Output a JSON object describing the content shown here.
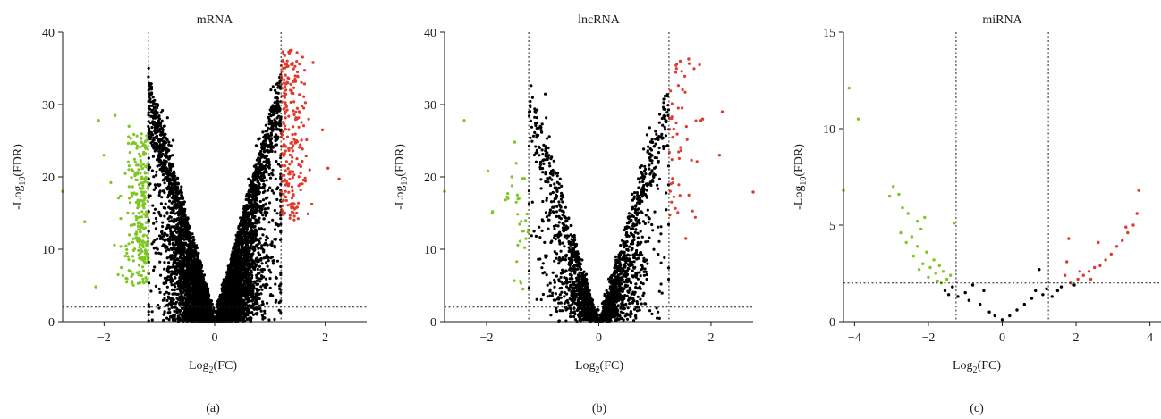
{
  "chart_data": [
    {
      "type": "scatter",
      "panel": "(a)",
      "title": "mRNA",
      "xlabel": "Log2(FC)",
      "ylabel": "-Log10(FDR)",
      "xlim": [
        -2.75,
        2.75
      ],
      "ylim": [
        0,
        40
      ],
      "xticks": [
        -2,
        0,
        2
      ],
      "yticks": [
        0,
        10,
        20,
        30,
        40
      ],
      "fc_threshold": 1.2,
      "fdr_threshold": 2,
      "grid": false,
      "legend": "none",
      "colors": {
        "down": "#7ec622",
        "up": "#e03a2c",
        "ns": "#000000"
      },
      "volcano": {
        "n_ns": 6500,
        "n_down": 260,
        "n_up": 230,
        "slope": 28,
        "max_y": 37.5,
        "min_base": 0.3,
        "spread": 0.9
      },
      "series": [
        {
          "values": [
            {
              "x": -2.75,
              "y": 18
            },
            {
              "x": -2.1,
              "y": 27.8
            },
            {
              "x": -2.35,
              "y": 13.8
            },
            {
              "x": -1.8,
              "y": 28.5
            },
            {
              "x": -1.55,
              "y": 27.0
            },
            {
              "x": -2.15,
              "y": 4.8
            },
            {
              "x": -1.6,
              "y": 6.0
            },
            {
              "x": -1.4,
              "y": 24.3
            },
            {
              "x": 1.35,
              "y": 37.0
            },
            {
              "x": 1.78,
              "y": 35.8
            },
            {
              "x": 1.95,
              "y": 26.5
            },
            {
              "x": 2.25,
              "y": 19.7
            },
            {
              "x": 2.05,
              "y": 21.2
            },
            {
              "x": 1.32,
              "y": 33.0
            }
          ]
        }
      ]
    },
    {
      "type": "scatter",
      "panel": "(b)",
      "title": "lncRNA",
      "xlabel": "Log2(FC)",
      "ylabel": "-Log10(FDR)",
      "xlim": [
        -2.75,
        2.75
      ],
      "ylim": [
        0,
        40
      ],
      "xticks": [
        -2,
        0,
        2
      ],
      "yticks": [
        0,
        10,
        20,
        30,
        40
      ],
      "fc_threshold": 1.25,
      "fdr_threshold": 2,
      "grid": false,
      "legend": "none",
      "colors": {
        "down": "#7ec622",
        "up": "#e03a2c",
        "ns": "#000000"
      },
      "volcano": {
        "n_ns": 2000,
        "n_down": 30,
        "n_up": 50,
        "slope": 26,
        "max_y": 38,
        "min_base": 0.5,
        "spread": 0.8
      },
      "series": [
        {
          "values": [
            {
              "x": -2.75,
              "y": 18.0
            },
            {
              "x": -2.4,
              "y": 27.8
            },
            {
              "x": -1.5,
              "y": 24.8
            },
            {
              "x": -1.55,
              "y": 20.0
            },
            {
              "x": -1.45,
              "y": 17.5
            },
            {
              "x": -1.35,
              "y": 4.5
            },
            {
              "x": -1.9,
              "y": 15.0
            },
            {
              "x": 1.45,
              "y": 36.0
            },
            {
              "x": 1.6,
              "y": 36.3
            },
            {
              "x": 1.85,
              "y": 28.0
            },
            {
              "x": 2.2,
              "y": 29.0
            },
            {
              "x": 2.75,
              "y": 17.9
            },
            {
              "x": 2.15,
              "y": 23.0
            },
            {
              "x": 1.55,
              "y": 11.5
            }
          ]
        }
      ]
    },
    {
      "type": "scatter",
      "panel": "(c)",
      "title": "miRNA",
      "xlabel": "Log2(FC)",
      "ylabel": "-Log10(FDR)",
      "xlim": [
        -4.3,
        4.3
      ],
      "ylim": [
        0,
        15
      ],
      "xticks": [
        -4,
        -2,
        0,
        2,
        4
      ],
      "yticks": [
        0,
        5,
        10,
        15
      ],
      "fc_threshold": 1.25,
      "fdr_threshold": 2,
      "grid": false,
      "legend": "none",
      "colors": {
        "down": "#7ec622",
        "up": "#e03a2c",
        "ns": "#000000"
      },
      "series": [
        {
          "values": [
            {
              "x": -4.15,
              "y": 12.1
            },
            {
              "x": -3.9,
              "y": 10.5
            },
            {
              "x": -4.3,
              "y": 6.8
            },
            {
              "x": -3.05,
              "y": 6.5
            },
            {
              "x": -2.8,
              "y": 6.6
            },
            {
              "x": -2.95,
              "y": 7.0
            },
            {
              "x": -2.7,
              "y": 5.9
            },
            {
              "x": -2.55,
              "y": 5.6
            },
            {
              "x": -2.3,
              "y": 5.2
            },
            {
              "x": -2.1,
              "y": 5.4
            },
            {
              "x": -2.2,
              "y": 4.8
            },
            {
              "x": -2.45,
              "y": 4.4
            },
            {
              "x": -2.75,
              "y": 4.6
            },
            {
              "x": -2.6,
              "y": 4.1
            },
            {
              "x": -2.3,
              "y": 3.9
            },
            {
              "x": -2.05,
              "y": 3.6
            },
            {
              "x": -1.85,
              "y": 3.2
            },
            {
              "x": -2.15,
              "y": 3.0
            },
            {
              "x": -2.4,
              "y": 3.4
            },
            {
              "x": -1.95,
              "y": 2.8
            },
            {
              "x": -1.7,
              "y": 2.9
            },
            {
              "x": -1.8,
              "y": 2.5
            },
            {
              "x": -1.6,
              "y": 2.6
            },
            {
              "x": -1.5,
              "y": 2.2
            },
            {
              "x": -1.65,
              "y": 2.0
            },
            {
              "x": -1.4,
              "y": 2.4
            },
            {
              "x": -1.35,
              "y": 1.8
            },
            {
              "x": -1.55,
              "y": 1.6
            },
            {
              "x": -1.3,
              "y": 5.1
            },
            {
              "x": -1.75,
              "y": 2.1
            },
            {
              "x": -2.0,
              "y": 2.3
            },
            {
              "x": -2.25,
              "y": 2.7
            },
            {
              "x": -1.45,
              "y": 1.4
            },
            {
              "x": -1.2,
              "y": 1.3
            },
            {
              "x": -1.0,
              "y": 1.5
            },
            {
              "x": -0.8,
              "y": 1.9
            },
            {
              "x": -0.9,
              "y": 1.1
            },
            {
              "x": -0.6,
              "y": 0.9
            },
            {
              "x": -0.5,
              "y": 1.6
            },
            {
              "x": -0.35,
              "y": 0.5
            },
            {
              "x": -0.2,
              "y": 0.3
            },
            {
              "x": 0.0,
              "y": 0.1
            },
            {
              "x": 0.2,
              "y": 0.3
            },
            {
              "x": 0.4,
              "y": 0.6
            },
            {
              "x": 0.6,
              "y": 0.9
            },
            {
              "x": 0.8,
              "y": 1.2
            },
            {
              "x": 1.0,
              "y": 2.7
            },
            {
              "x": 0.9,
              "y": 1.6
            },
            {
              "x": 1.1,
              "y": 1.4
            },
            {
              "x": 1.2,
              "y": 1.7
            },
            {
              "x": 1.35,
              "y": 1.3
            },
            {
              "x": 1.5,
              "y": 1.6
            },
            {
              "x": 1.6,
              "y": 1.8
            },
            {
              "x": 1.7,
              "y": 2.4
            },
            {
              "x": 1.75,
              "y": 3.1
            },
            {
              "x": 1.85,
              "y": 2.0
            },
            {
              "x": 1.95,
              "y": 1.9
            },
            {
              "x": 2.05,
              "y": 2.2
            },
            {
              "x": 2.2,
              "y": 2.4
            },
            {
              "x": 2.35,
              "y": 2.6
            },
            {
              "x": 2.5,
              "y": 2.8
            },
            {
              "x": 2.65,
              "y": 2.9
            },
            {
              "x": 2.8,
              "y": 3.2
            },
            {
              "x": 2.95,
              "y": 3.5
            },
            {
              "x": 3.1,
              "y": 3.9
            },
            {
              "x": 3.25,
              "y": 4.2
            },
            {
              "x": 3.4,
              "y": 4.6
            },
            {
              "x": 3.55,
              "y": 5.0
            },
            {
              "x": 3.65,
              "y": 5.6
            },
            {
              "x": 3.7,
              "y": 6.8
            },
            {
              "x": 1.8,
              "y": 4.3
            },
            {
              "x": 2.6,
              "y": 4.1
            },
            {
              "x": 3.35,
              "y": 4.9
            },
            {
              "x": 2.4,
              "y": 2.2
            },
            {
              "x": 2.1,
              "y": 2.6
            }
          ]
        }
      ]
    }
  ]
}
